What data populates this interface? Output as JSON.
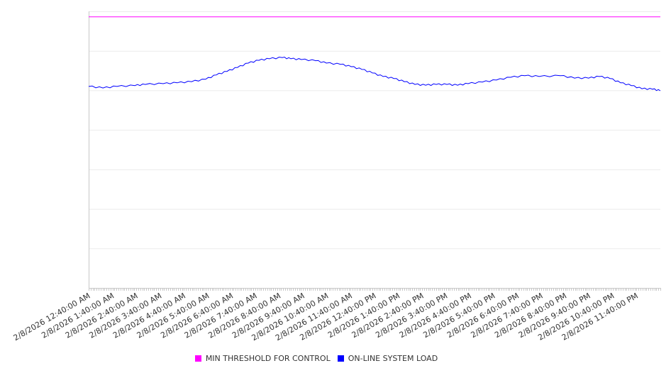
{
  "chart_data": {
    "type": "line",
    "title": "",
    "xlabel": "",
    "ylabel": "",
    "y_tick_labels_shown": false,
    "ylim": [
      0,
      7
    ],
    "grid": true,
    "legend_placement": "bottom-center",
    "x_tick_labels": [
      "2/8/2026 12:40:00 AM",
      "2/8/2026 1:40:00 AM",
      "2/8/2026 2:40:00 AM",
      "2/8/2026 3:40:00 AM",
      "2/8/2026 4:40:00 AM",
      "2/8/2026 5:40:00 AM",
      "2/8/2026 6:40:00 AM",
      "2/8/2026 7:40:00 AM",
      "2/8/2026 8:40:00 AM",
      "2/8/2026 9:40:00 AM",
      "2/8/2026 10:40:00 AM",
      "2/8/2026 11:40:00 AM",
      "2/8/2026 12:40:00 PM",
      "2/8/2026 1:40:00 PM",
      "2/8/2026 2:40:00 PM",
      "2/8/2026 3:40:00 PM",
      "2/8/2026 4:40:00 PM",
      "2/8/2026 5:40:00 PM",
      "2/8/2026 6:40:00 PM",
      "2/8/2026 7:40:00 PM",
      "2/8/2026 8:40:00 PM",
      "2/8/2026 9:40:00 PM",
      "2/8/2026 10:40:00 PM",
      "2/8/2026 11:40:00 PM"
    ],
    "x_unit": "hours since 2/8/2026 12:40:00 AM",
    "xlim": [
      0,
      24
    ],
    "series": [
      {
        "name": "MIN THRESHOLD FOR CONTROL",
        "color": "#ff00ff",
        "x": [
          0,
          24
        ],
        "values": [
          6.86,
          6.86
        ]
      },
      {
        "name": "ON-LINE SYSTEM LOAD",
        "color": "#0000ff",
        "x": [
          0,
          0.6,
          1.19,
          1.94,
          2.38,
          3.13,
          3.72,
          4.32,
          4.91,
          5.36,
          5.81,
          6.25,
          6.7,
          7.15,
          7.59,
          8.13,
          8.49,
          8.93,
          9.53,
          9.98,
          10.57,
          11.02,
          11.47,
          11.91,
          12.36,
          12.81,
          13.25,
          13.7,
          14.15,
          14.59,
          15.04,
          15.49,
          15.93,
          16.53,
          17.12,
          17.72,
          18.31,
          18.91,
          19.8,
          20.4,
          20.99,
          21.44,
          21.89,
          22.33,
          22.78,
          23.23,
          23.67,
          24
        ],
        "values": [
          5.1,
          5.06,
          5.1,
          5.12,
          5.15,
          5.17,
          5.19,
          5.22,
          5.28,
          5.39,
          5.48,
          5.58,
          5.69,
          5.76,
          5.8,
          5.83,
          5.8,
          5.78,
          5.75,
          5.69,
          5.66,
          5.6,
          5.53,
          5.44,
          5.35,
          5.3,
          5.22,
          5.15,
          5.13,
          5.15,
          5.15,
          5.13,
          5.17,
          5.21,
          5.26,
          5.33,
          5.37,
          5.35,
          5.37,
          5.31,
          5.31,
          5.35,
          5.3,
          5.19,
          5.12,
          5.04,
          5.03,
          4.99
        ]
      }
    ]
  }
}
